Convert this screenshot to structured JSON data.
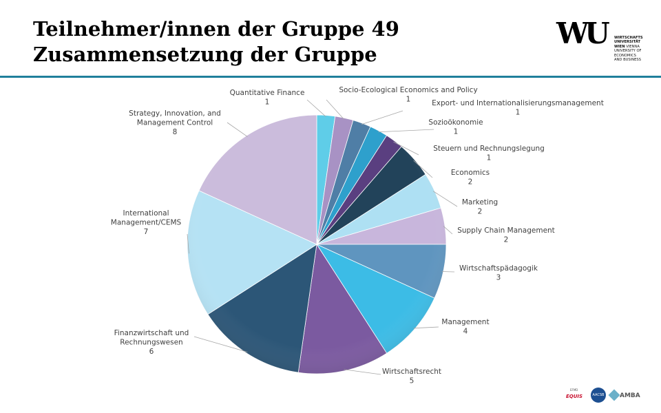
{
  "header": {
    "title_line1": "Teilnehmer/innen der Gruppe 49",
    "title_line2": "Zusammensetzung der Gruppe"
  },
  "logo": {
    "mark": "WU",
    "line1": "Wirtschafts",
    "line2": "Universität",
    "line3_bold": "Wien",
    "line3_rest": " Vienna",
    "line4": "University of",
    "line5": "Economics",
    "line6": "and Business"
  },
  "accreditations": {
    "equis_small": "EFMD",
    "equis": "EQUIS",
    "aacsb": "AACSB",
    "amba": "AMBA"
  },
  "chart_data": {
    "type": "pie",
    "title": "",
    "slices": [
      {
        "label": "Quantitative Finance",
        "value": 1,
        "color": "#5fcde8"
      },
      {
        "label": "Socio-Ecological Economics and Policy",
        "value": 1,
        "color": "#a892c4"
      },
      {
        "label": "Export- und Internationalisierungsmanagement",
        "value": 1,
        "color": "#4f7ea6"
      },
      {
        "label": "Sozioökonomie",
        "value": 1,
        "color": "#2ea0cc"
      },
      {
        "label": "Steuern und Rechnungslegung",
        "value": 1,
        "color": "#5a3f80"
      },
      {
        "label": "Economics",
        "value": 2,
        "color": "#22435a"
      },
      {
        "label": "Marketing",
        "value": 2,
        "color": "#aee0f3"
      },
      {
        "label": "Supply Chain Management",
        "value": 2,
        "color": "#c8b6dc"
      },
      {
        "label": "Wirtschaftspädagogik",
        "value": 3,
        "color": "#5f95bf"
      },
      {
        "label": "Management",
        "value": 4,
        "color": "#3cbce6"
      },
      {
        "label": "Wirtschaftsrecht",
        "value": 5,
        "color": "#7b5aa0"
      },
      {
        "label": "Finanzwirtschaft und Rechnungswesen",
        "value": 6,
        "color": "#2c5677"
      },
      {
        "label": "International Management/CEMS",
        "value": 7,
        "color": "#b5e2f4"
      },
      {
        "label": "Strategy, Innovation, and Management Control",
        "value": 8,
        "color": "#cbbcdc"
      }
    ],
    "labels_display": [
      [
        "Quantitative Finance",
        "1"
      ],
      [
        "Socio-Ecological Economics and Policy",
        "1"
      ],
      [
        "Export- und Internationalisierungsmanagement",
        "1"
      ],
      [
        "Sozioökonomie",
        "1"
      ],
      [
        "Steuern und Rechnungslegung",
        "1"
      ],
      [
        "Economics",
        "2"
      ],
      [
        "Marketing",
        "2"
      ],
      [
        "Supply Chain Management",
        "2"
      ],
      [
        "Wirtschaftspädagogik",
        "3"
      ],
      [
        "Management",
        "4"
      ],
      [
        "Wirtschaftsrecht",
        "5"
      ],
      [
        "Finanzwirtschaft und",
        "Rechnungswesen",
        "6"
      ],
      [
        "International",
        "Management/CEMS",
        "7"
      ],
      [
        "Strategy, Innovation, and",
        "Management Control",
        "8"
      ]
    ],
    "legend": "none",
    "data_labels": "outside with leader lines"
  }
}
